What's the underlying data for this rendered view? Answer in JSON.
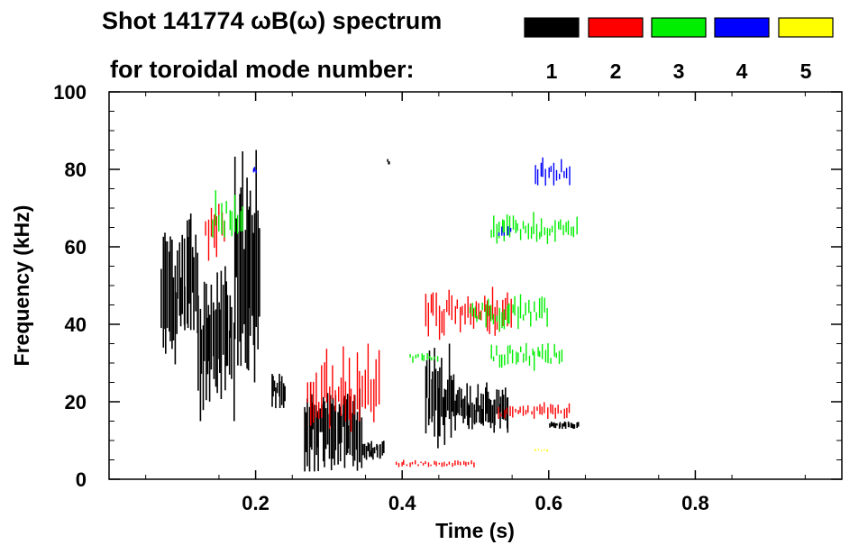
{
  "header": {
    "title_line1": "Shot 141774 ωB(ω) spectrum",
    "title_line2": "for toroidal mode number:"
  },
  "legend": [
    {
      "mode": "1",
      "color": "#000000"
    },
    {
      "mode": "2",
      "color": "#ff0000"
    },
    {
      "mode": "3",
      "color": "#00ee00"
    },
    {
      "mode": "4",
      "color": "#0000ff"
    },
    {
      "mode": "5",
      "color": "#ffff00"
    }
  ],
  "chart_data": {
    "type": "spectrogram",
    "title": "Shot 141774 ωB(ω) spectrum",
    "xlabel": "Time (s)",
    "ylabel": "Frequency (kHz)",
    "xlim": [
      0.0,
      1.0
    ],
    "ylim": [
      0,
      100
    ],
    "x_ticks": [
      0.2,
      0.4,
      0.6,
      0.8
    ],
    "x_tick_labels": [
      "0.2",
      "0.4",
      "0.6",
      "0.8"
    ],
    "y_ticks": [
      0,
      20,
      40,
      60,
      80,
      100
    ],
    "y_tick_labels": [
      "0",
      "20",
      "40",
      "60",
      "80",
      "100"
    ],
    "series": [
      {
        "name": "n=1",
        "color": "#000000",
        "segments": [
          {
            "t": [
              0.07,
              0.12
            ],
            "f": [
              28,
              70
            ]
          },
          {
            "t": [
              0.12,
              0.17
            ],
            "f": [
              15,
              55
            ]
          },
          {
            "t": [
              0.17,
              0.205
            ],
            "f": [
              25,
              85
            ]
          },
          {
            "t": [
              0.22,
              0.24
            ],
            "f": [
              18,
              28
            ]
          },
          {
            "t": [
              0.265,
              0.345
            ],
            "f": [
              2,
              25
            ]
          },
          {
            "t": [
              0.345,
              0.375
            ],
            "f": [
              5,
              10
            ]
          },
          {
            "t": [
              0.378,
              0.382
            ],
            "f": [
              81,
              83
            ]
          },
          {
            "t": [
              0.43,
              0.47
            ],
            "f": [
              8,
              35
            ]
          },
          {
            "t": [
              0.47,
              0.545
            ],
            "f": [
              12,
              25
            ]
          },
          {
            "t": [
              0.6,
              0.64
            ],
            "f": [
              13,
              15
            ]
          }
        ]
      },
      {
        "name": "n=2",
        "color": "#ff0000",
        "segments": [
          {
            "t": [
              0.13,
              0.16
            ],
            "f": [
              55,
              75
            ]
          },
          {
            "t": [
              0.27,
              0.37
            ],
            "f": [
              10,
              35
            ]
          },
          {
            "t": [
              0.43,
              0.55
            ],
            "f": [
              36,
              50
            ]
          },
          {
            "t": [
              0.53,
              0.63
            ],
            "f": [
              15,
              20
            ]
          },
          {
            "t": [
              0.39,
              0.5
            ],
            "f": [
              3,
              5
            ]
          }
        ]
      },
      {
        "name": "n=3",
        "color": "#00ee00",
        "segments": [
          {
            "t": [
              0.14,
              0.185
            ],
            "f": [
              60,
              75
            ]
          },
          {
            "t": [
              0.52,
              0.64
            ],
            "f": [
              60,
              69
            ]
          },
          {
            "t": [
              0.49,
              0.6
            ],
            "f": [
              38,
              48
            ]
          },
          {
            "t": [
              0.52,
              0.62
            ],
            "f": [
              28,
              36
            ]
          },
          {
            "t": [
              0.41,
              0.45
            ],
            "f": [
              30,
              33
            ]
          }
        ]
      },
      {
        "name": "n=4",
        "color": "#0000ff",
        "segments": [
          {
            "t": [
              0.195,
              0.2
            ],
            "f": [
              78,
              81
            ]
          },
          {
            "t": [
              0.53,
              0.55
            ],
            "f": [
              62,
              66
            ]
          },
          {
            "t": [
              0.58,
              0.63
            ],
            "f": [
              75,
              84
            ]
          }
        ]
      },
      {
        "name": "n=5",
        "color": "#ffff00",
        "segments": [
          {
            "t": [
              0.58,
              0.6
            ],
            "f": [
              7,
              8
            ]
          }
        ]
      }
    ]
  }
}
